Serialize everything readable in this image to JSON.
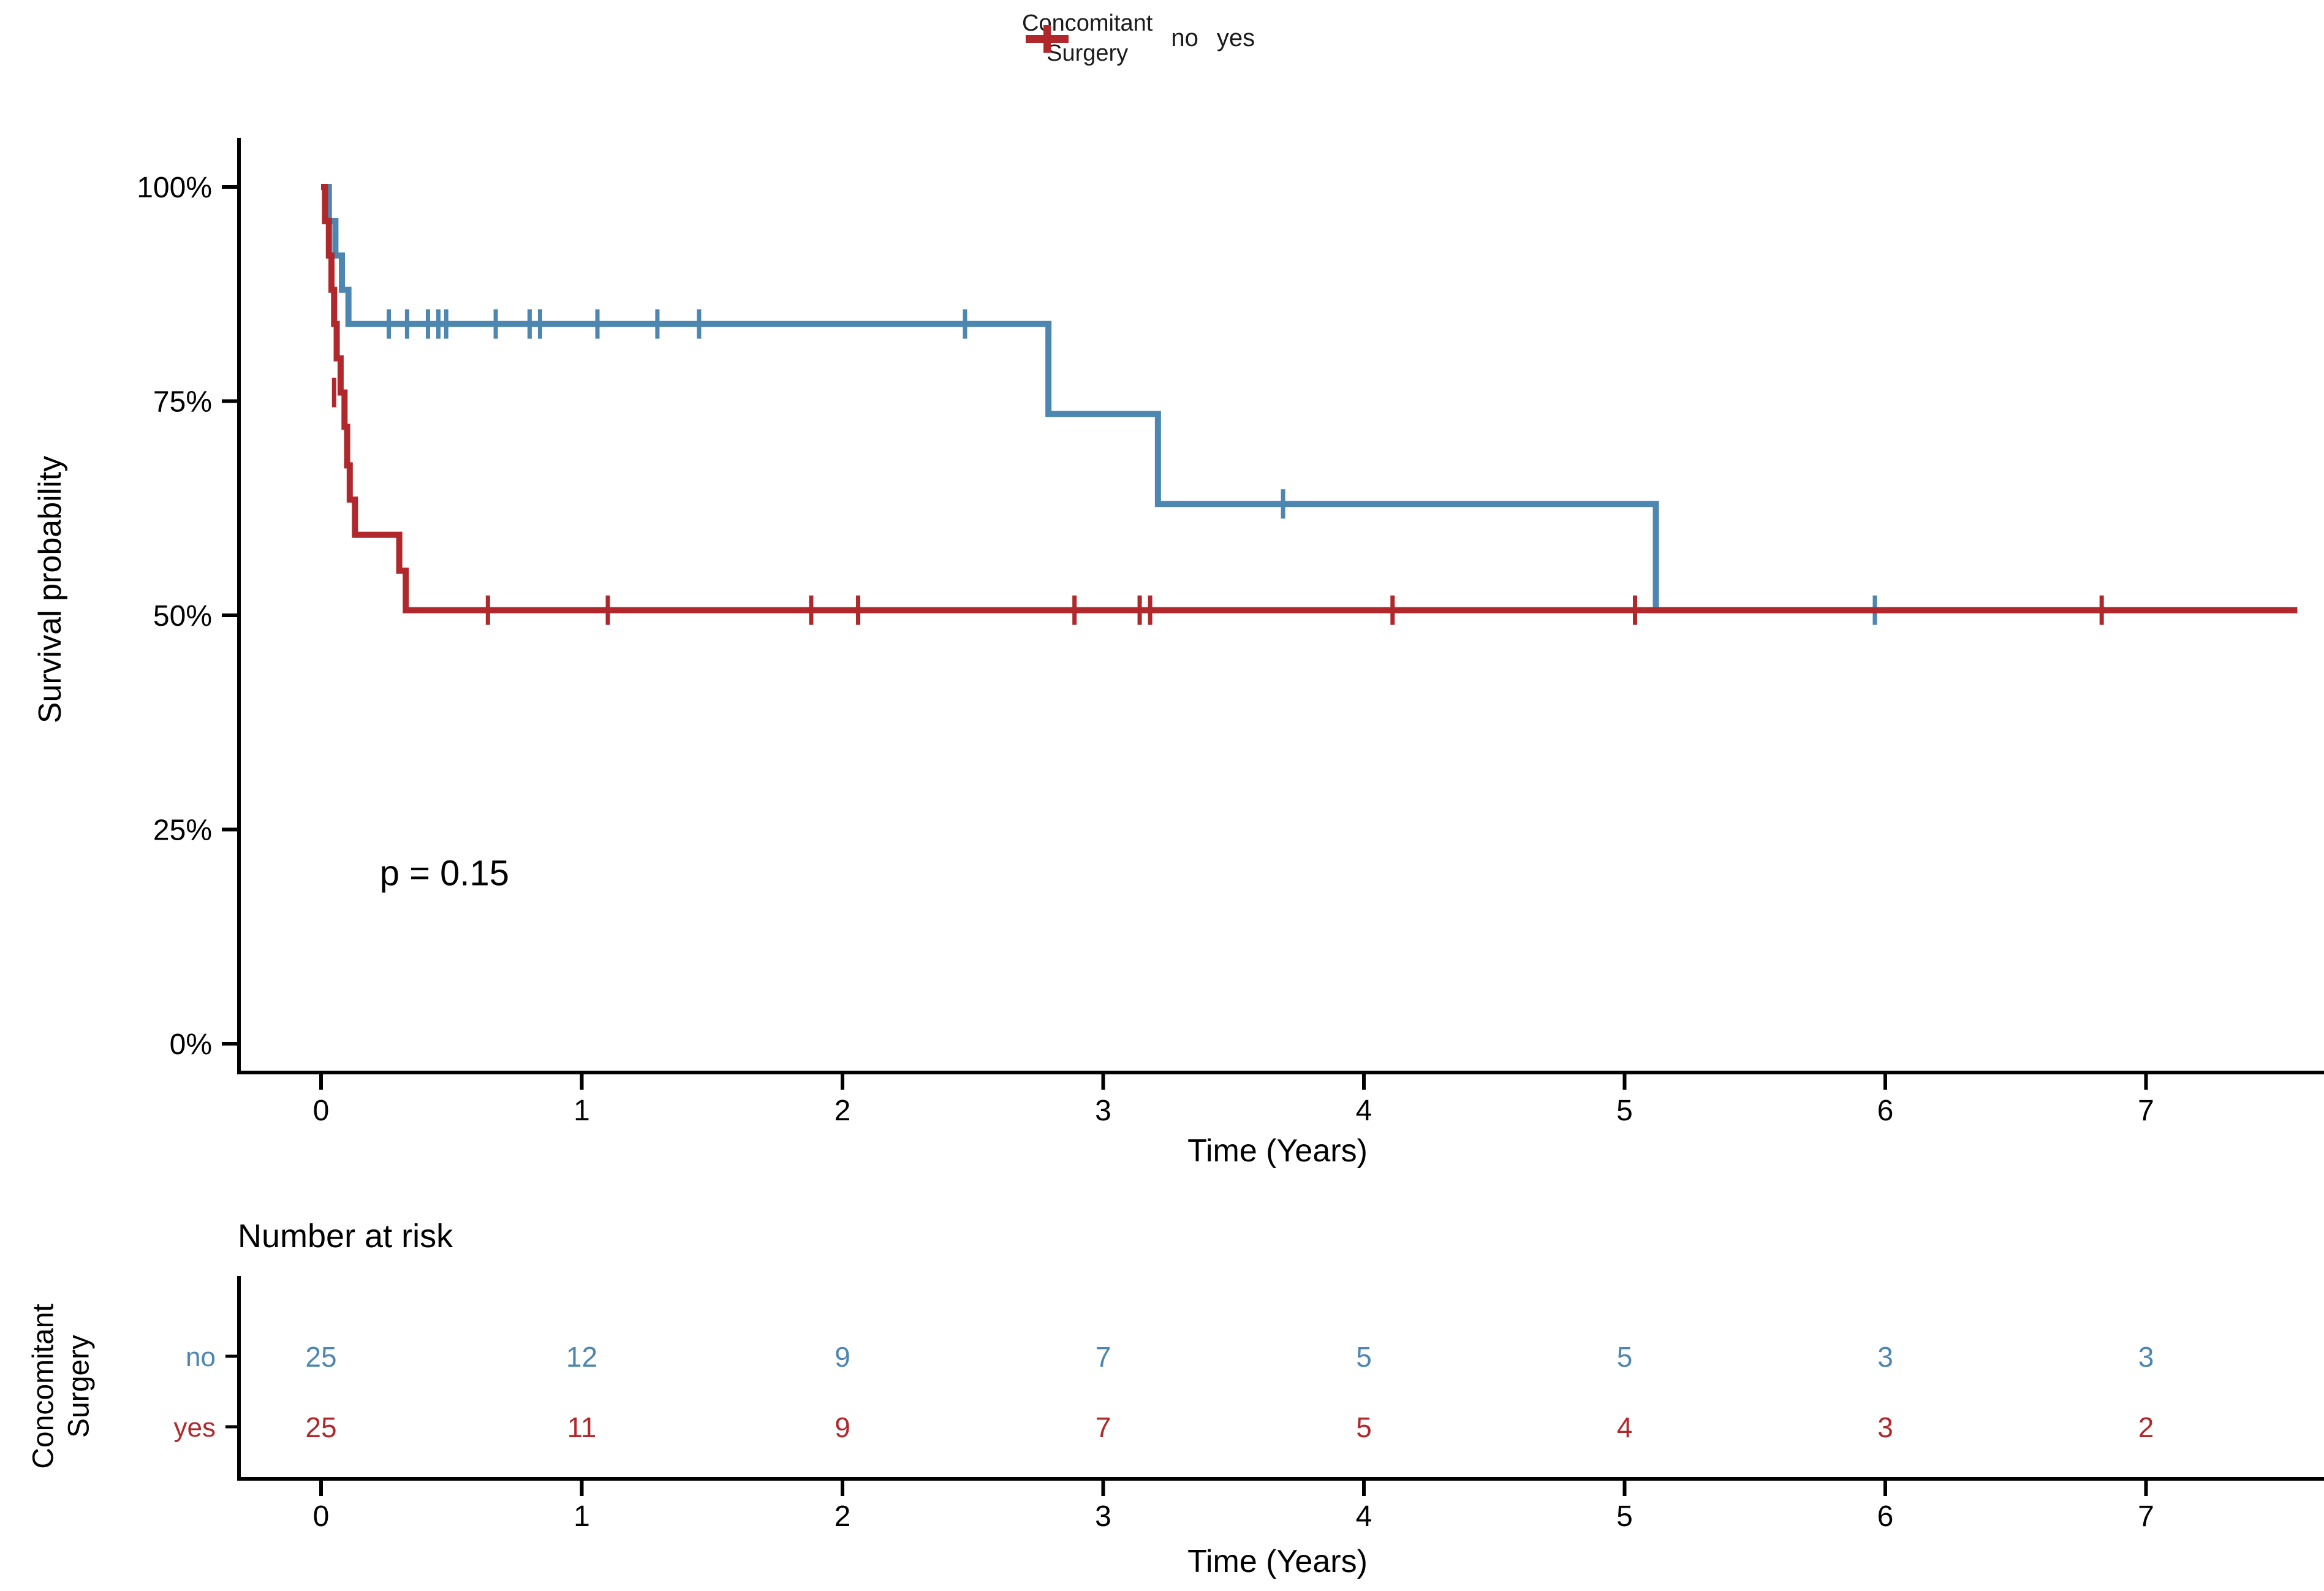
{
  "legend": {
    "title_line1": "Concomitant",
    "title_line2": "Surgery",
    "items": [
      {
        "label": "no",
        "color": "#4D86B1"
      },
      {
        "label": "yes",
        "color": "#B0282C"
      }
    ]
  },
  "chart_data": {
    "type": "line",
    "subtype": "kaplan-meier-step",
    "title": "",
    "xlabel": "Time (Years)",
    "ylabel": "Survival probability",
    "xlim": [
      -0.31,
      7.68
    ],
    "ylim": [
      0,
      1
    ],
    "x_ticks": [
      "0",
      "1",
      "2",
      "3",
      "4",
      "5",
      "6",
      "7"
    ],
    "x_tick_values": [
      0,
      1,
      2,
      3,
      4,
      5,
      6,
      7
    ],
    "y_ticks": [
      "0%",
      "25%",
      "50%",
      "75%",
      "100%"
    ],
    "y_tick_values": [
      0,
      0.25,
      0.5,
      0.75,
      1
    ],
    "grid": false,
    "legend_position": "top",
    "annotation": {
      "text": "p = 0.15",
      "x": 0.225,
      "y": 0.185
    },
    "series": [
      {
        "name": "no",
        "color": "#4D86B1",
        "points": [
          [
            0,
            1.0
          ],
          [
            0.03,
            0.96
          ],
          [
            0.055,
            0.92
          ],
          [
            0.08,
            0.88
          ],
          [
            0.105,
            0.84
          ],
          [
            2.79,
            0.735
          ],
          [
            3.21,
            0.63
          ],
          [
            5.12,
            0.506
          ],
          [
            7.58,
            0.506
          ]
        ],
        "censors": [
          [
            0.26,
            0.84
          ],
          [
            0.33,
            0.84
          ],
          [
            0.41,
            0.84
          ],
          [
            0.45,
            0.84
          ],
          [
            0.48,
            0.84
          ],
          [
            0.67,
            0.84
          ],
          [
            0.8,
            0.84
          ],
          [
            0.84,
            0.84
          ],
          [
            1.06,
            0.84
          ],
          [
            1.29,
            0.84
          ],
          [
            1.45,
            0.84
          ],
          [
            2.47,
            0.84
          ],
          [
            3.69,
            0.63
          ],
          [
            5.96,
            0.506
          ]
        ]
      },
      {
        "name": "yes",
        "color": "#B0282C",
        "points": [
          [
            0,
            1.0
          ],
          [
            0.015,
            0.96
          ],
          [
            0.03,
            0.92
          ],
          [
            0.04,
            0.88
          ],
          [
            0.05,
            0.84
          ],
          [
            0.06,
            0.8
          ],
          [
            0.075,
            0.76
          ],
          [
            0.09,
            0.72
          ],
          [
            0.1,
            0.675
          ],
          [
            0.11,
            0.635
          ],
          [
            0.13,
            0.594
          ],
          [
            0.3,
            0.552
          ],
          [
            0.325,
            0.506
          ],
          [
            7.58,
            0.506
          ]
        ],
        "censors": [
          [
            0.05,
            0.76
          ],
          [
            0.64,
            0.506
          ],
          [
            1.1,
            0.506
          ],
          [
            1.88,
            0.506
          ],
          [
            2.06,
            0.506
          ],
          [
            2.89,
            0.506
          ],
          [
            3.14,
            0.506
          ],
          [
            3.18,
            0.506
          ],
          [
            4.11,
            0.506
          ],
          [
            5.04,
            0.506
          ],
          [
            6.83,
            0.506
          ]
        ]
      }
    ]
  },
  "risk_table": {
    "title": "Number at risk",
    "axis_label_line1": "Concomitant",
    "axis_label_line2": "Surgery",
    "xlabel": "Time (Years)",
    "x_ticks": [
      "0",
      "1",
      "2",
      "3",
      "4",
      "5",
      "6",
      "7"
    ],
    "x_tick_values": [
      0,
      1,
      2,
      3,
      4,
      5,
      6,
      7
    ],
    "rows": [
      {
        "label": "no",
        "color": "#4D86B1",
        "counts": [
          "25",
          "12",
          "9",
          "7",
          "5",
          "5",
          "3",
          "3"
        ]
      },
      {
        "label": "yes",
        "color": "#B0282C",
        "counts": [
          "25",
          "11",
          "9",
          "7",
          "5",
          "4",
          "3",
          "2"
        ]
      }
    ]
  },
  "colors": {
    "axis": "#000000",
    "text": "#1a1a1a",
    "blue": "#4D86B1",
    "red": "#B0282C"
  }
}
